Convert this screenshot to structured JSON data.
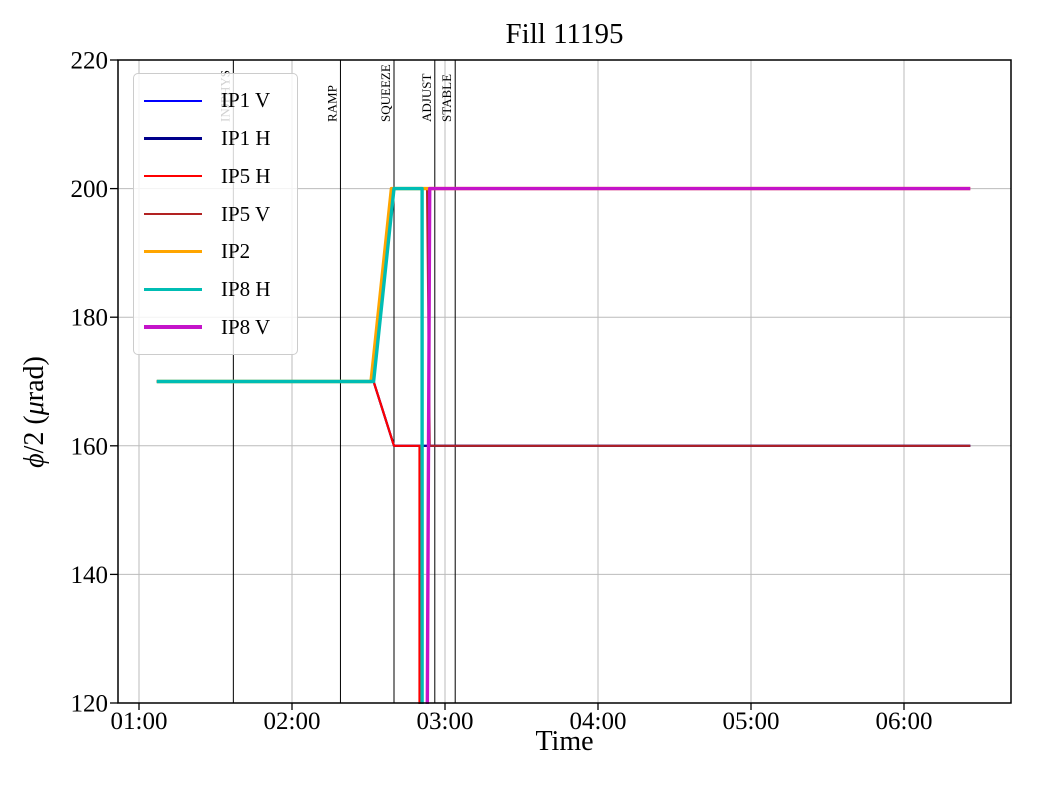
{
  "chart_data": {
    "type": "line",
    "title": "Fill 11195",
    "xlabel": "Time",
    "ylabel": "ϕ/2 (μrad)",
    "ylabel_parts": {
      "phi": "ϕ",
      "mid": "/2 (",
      "mu": "μ",
      "end": "rad)"
    },
    "x_ticks": [
      "01:00",
      "02:00",
      "03:00",
      "04:00",
      "05:00",
      "06:00"
    ],
    "y_ticks": [
      120,
      140,
      160,
      180,
      200,
      220
    ],
    "xlim": [
      "00:52",
      "06:42"
    ],
    "ylim": [
      120,
      220
    ],
    "grid": true,
    "grid_color": "#bbbbbb",
    "legend_position": "upper left",
    "markers": [
      {
        "label": "INJPHYS",
        "time": "01:37"
      },
      {
        "label": "RAMP",
        "time": "02:19"
      },
      {
        "label": "SQUEEZE",
        "time": "02:40"
      },
      {
        "label": "ADJUST",
        "time": "02:56"
      },
      {
        "label": "STABLE",
        "time": "03:04"
      }
    ],
    "series": [
      {
        "name": "IP1 V",
        "color": "#0000ff",
        "width": 2.2,
        "points": [
          [
            "01:07",
            170
          ],
          [
            "02:32",
            170
          ],
          [
            "02:40",
            160
          ],
          [
            "06:26",
            160
          ]
        ]
      },
      {
        "name": "IP1 H",
        "color": "#00008b",
        "width": 2.2,
        "points": [
          [
            "01:07",
            170
          ],
          [
            "02:32",
            170
          ],
          [
            "02:40",
            160
          ],
          [
            "06:26",
            160
          ]
        ]
      },
      {
        "name": "IP5 H",
        "color": "#fe0000",
        "width": 2.2,
        "points": [
          [
            "01:07",
            170
          ],
          [
            "02:32",
            170
          ],
          [
            "02:40",
            160
          ],
          [
            "02:50",
            160
          ],
          [
            "02:50",
            112
          ],
          [
            "06:26",
            112
          ]
        ]
      },
      {
        "name": "IP5 V",
        "color": "#b22222",
        "width": 2.2,
        "points": [
          [
            "01:07",
            170
          ],
          [
            "02:32",
            170
          ],
          [
            "02:40",
            200
          ],
          [
            "02:53",
            200
          ],
          [
            "02:54",
            160
          ],
          [
            "06:26",
            160
          ]
        ]
      },
      {
        "name": "IP2",
        "color": "#ffa500",
        "width": 3.4,
        "points": [
          [
            "01:07",
            170
          ],
          [
            "02:31",
            170
          ],
          [
            "02:39",
            200
          ],
          [
            "06:26",
            200
          ]
        ]
      },
      {
        "name": "IP8 H",
        "color": "#00bdb4",
        "width": 3.4,
        "points": [
          [
            "01:07",
            170
          ],
          [
            "02:32",
            170
          ],
          [
            "02:40",
            200
          ],
          [
            "02:51",
            200
          ],
          [
            "02:51",
            112
          ],
          [
            "06:26",
            112
          ]
        ]
      },
      {
        "name": "IP8 V",
        "color": "#c414c9",
        "width": 3.4,
        "points": [
          [
            "01:07",
            112
          ],
          [
            "02:53",
            112
          ],
          [
            "02:54",
            200
          ],
          [
            "06:26",
            200
          ]
        ]
      }
    ]
  }
}
